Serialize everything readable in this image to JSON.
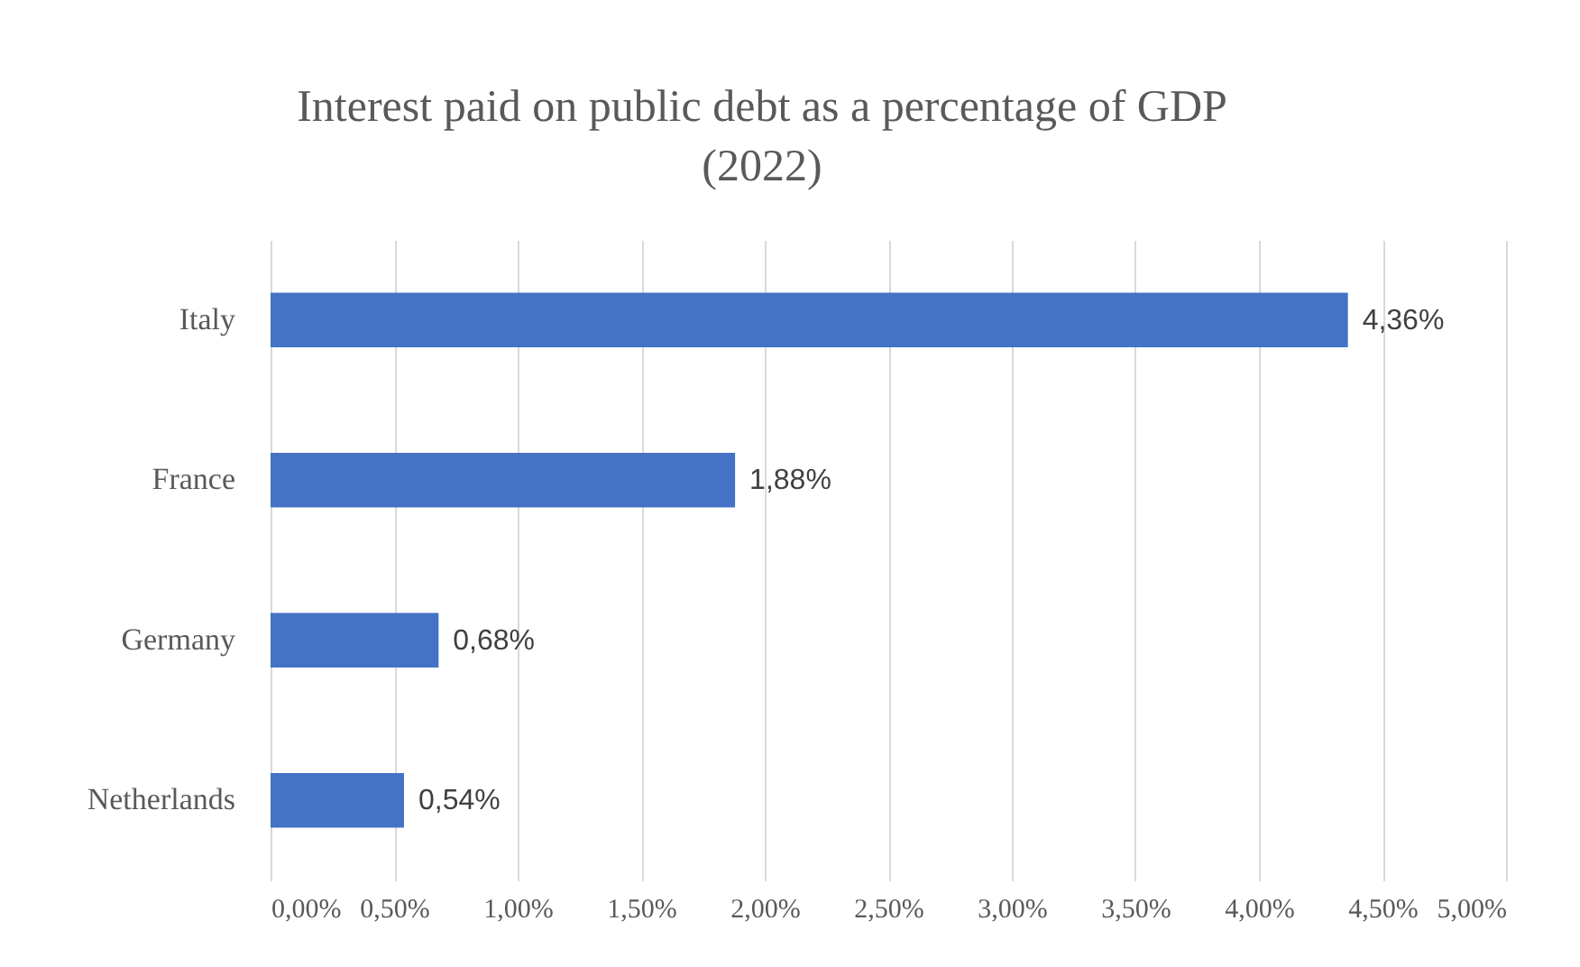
{
  "chart_data": {
    "type": "bar",
    "orientation": "horizontal",
    "title": "Interest paid on public debt as a percentage of GDP\n(2022)",
    "categories": [
      "Italy",
      "France",
      "Germany",
      "Netherlands"
    ],
    "values": [
      4.36,
      1.88,
      0.68,
      0.54
    ],
    "value_labels": [
      "4,36%",
      "1,88%",
      "0,68%",
      "0,54%"
    ],
    "color": "#4472c4",
    "xlim": [
      0,
      5
    ],
    "xticks": [
      {
        "value": 0,
        "label": "0,00%"
      },
      {
        "value": 0.5,
        "label": "0,50%"
      },
      {
        "value": 1,
        "label": "1,00%"
      },
      {
        "value": 1.5,
        "label": "1,50%"
      },
      {
        "value": 2,
        "label": "2,00%"
      },
      {
        "value": 2.5,
        "label": "2,50%"
      },
      {
        "value": 3,
        "label": "3,00%"
      },
      {
        "value": 3.5,
        "label": "3,50%"
      },
      {
        "value": 4,
        "label": "4,00%"
      },
      {
        "value": 4.5,
        "label": "4,50%"
      },
      {
        "value": 5,
        "label": "5,00%"
      }
    ],
    "grid": "x"
  }
}
